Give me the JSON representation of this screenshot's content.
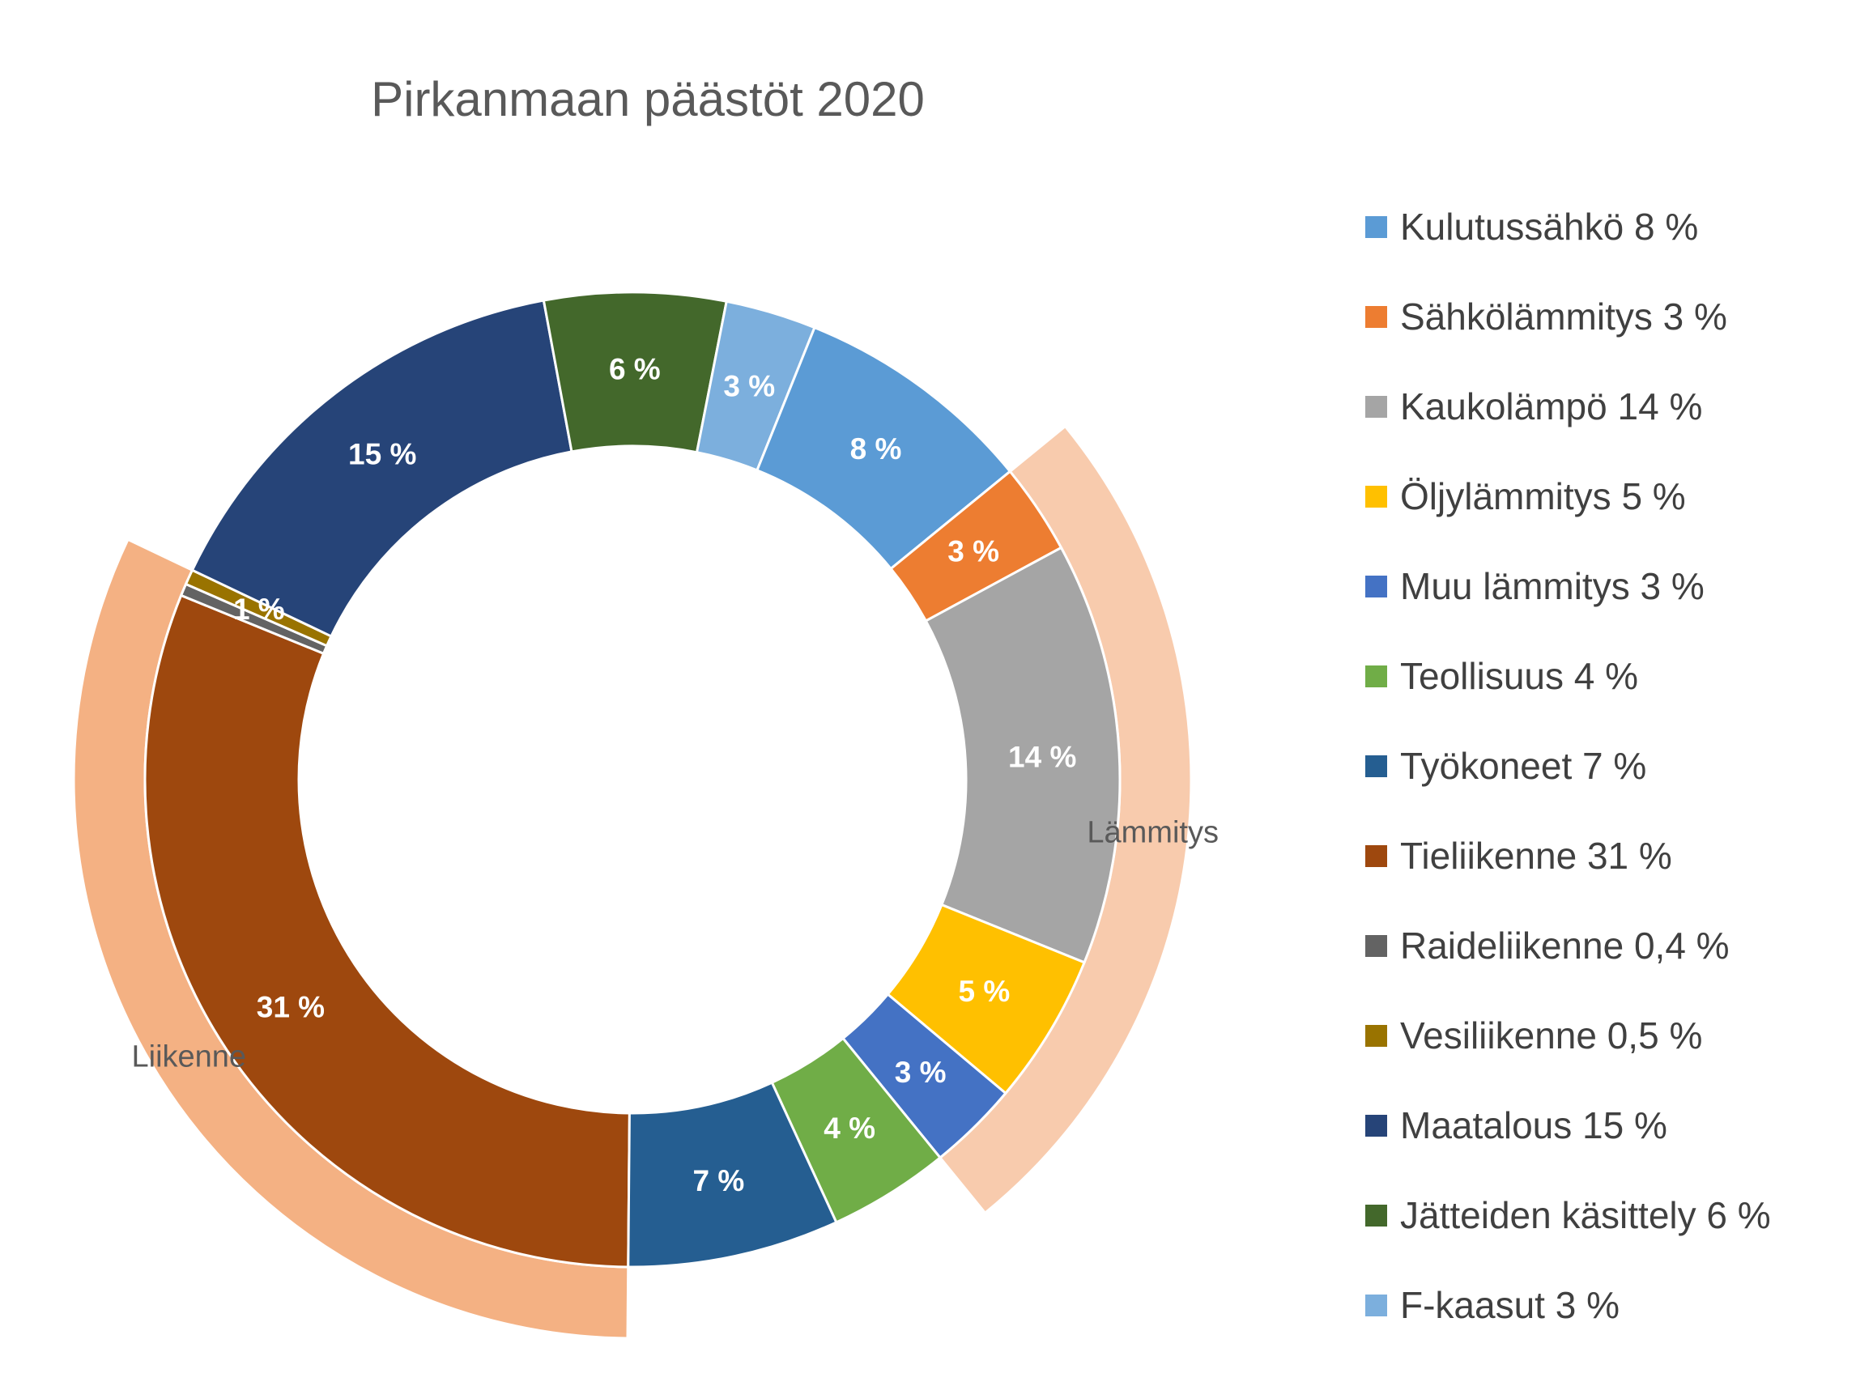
{
  "chart_data": {
    "type": "pie",
    "subtype": "doughnut",
    "title": "Pirkanmaan päästöt 2020",
    "legend_position": "right",
    "slices": [
      {
        "label": "Tieliikenne",
        "legend": "Tieliikenne 31 %",
        "value": 31,
        "data_label": "31 %",
        "color": "#9E480E"
      },
      {
        "label": "Raideliikenne",
        "legend": "Raideliikenne 0,4 %",
        "value": 0.4,
        "data_label": "",
        "color": "#636363"
      },
      {
        "label": "Vesiliikenne",
        "legend": "Vesiliikenne 0,5 %",
        "value": 0.5,
        "data_label": "1 %",
        "color": "#997300"
      },
      {
        "label": "Maatalous",
        "legend": "Maatalous 15 %",
        "value": 15,
        "data_label": "15 %",
        "color": "#264478"
      },
      {
        "label": "Jätteiden käsittely",
        "legend": "Jätteiden käsittely 6 %",
        "value": 6,
        "data_label": "6 %",
        "color": "#43682B"
      },
      {
        "label": "F-kaasut",
        "legend": "F-kaasut 3 %",
        "value": 3,
        "data_label": "3 %",
        "color": "#7CAFDD"
      },
      {
        "label": "Kulutussähkö",
        "legend": "Kulutussähkö 8 %",
        "value": 8,
        "data_label": "8 %",
        "color": "#5B9BD5"
      },
      {
        "label": "Sähkölämmitys",
        "legend": "Sähkölämmitys 3 %",
        "value": 3,
        "data_label": "3 %",
        "color": "#ED7D31"
      },
      {
        "label": "Kaukolämpö",
        "legend": "Kaukolämpö 14 %",
        "value": 14,
        "data_label": "14 %",
        "color": "#A5A5A5"
      },
      {
        "label": "Öljylämmitys",
        "legend": "Öljylämmitys 5 %",
        "value": 5,
        "data_label": "5 %",
        "color": "#FFC000"
      },
      {
        "label": "Muu lämmitys",
        "legend": "Muu lämmitys 3 %",
        "value": 3,
        "data_label": "3 %",
        "color": "#4472C4"
      },
      {
        "label": "Teollisuus",
        "legend": "Teollisuus 4 %",
        "value": 4,
        "data_label": "4 %",
        "color": "#70AD47"
      },
      {
        "label": "Työkoneet",
        "legend": "Työkoneet 7 %",
        "value": 7,
        "data_label": "7 %",
        "color": "#255E91"
      }
    ],
    "groups": [
      {
        "label": "Lämmitys",
        "members": [
          "Sähkölämmitys",
          "Kaukolämpö",
          "Öljylämmitys",
          "Muu lämmitys"
        ],
        "color": "#F8CBAD"
      },
      {
        "label": "Liikenne",
        "members": [
          "Tieliikenne",
          "Raideliikenne",
          "Vesiliikenne"
        ],
        "color": "#F4B183"
      }
    ],
    "legend_order": [
      "Kulutussähkö",
      "Sähkölämmitys",
      "Kaukolämpö",
      "Öljylämmitys",
      "Muu lämmitys",
      "Teollisuus",
      "Työkoneet",
      "Tieliikenne",
      "Raideliikenne",
      "Vesiliikenne",
      "Maatalous",
      "Jätteiden käsittely",
      "F-kaasut"
    ]
  }
}
